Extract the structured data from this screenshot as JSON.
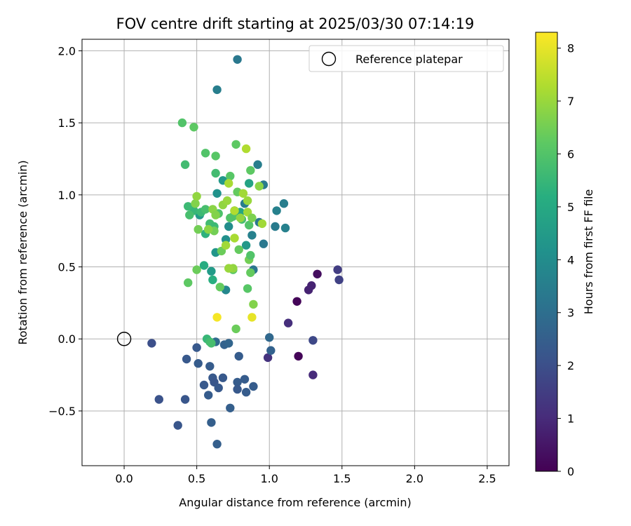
{
  "chart_data": {
    "type": "scatter",
    "title": "FOV centre drift starting at 2025/03/30 07:14:19",
    "xlabel": "Angular distance from reference (arcmin)",
    "ylabel": "Rotation from reference (arcmin)",
    "xlim": [
      -0.29,
      2.65
    ],
    "ylim": [
      -0.88,
      2.08
    ],
    "xticks": [
      0.0,
      0.5,
      1.0,
      1.5,
      2.0,
      2.5
    ],
    "xtick_labels": [
      "0.0",
      "0.5",
      "1.0",
      "1.5",
      "2.0",
      "2.5"
    ],
    "yticks": [
      -0.5,
      0.0,
      0.5,
      1.0,
      1.5,
      2.0
    ],
    "ytick_labels": [
      "−0.5",
      "0.0",
      "0.5",
      "1.0",
      "1.5",
      "2.0"
    ],
    "grid": true,
    "colormap": "viridis",
    "colorbar": {
      "label": "Hours from first FF file",
      "min": 0,
      "max": 8.3,
      "ticks": [
        0,
        1,
        2,
        3,
        4,
        5,
        6,
        7,
        8
      ],
      "tick_labels": [
        "0",
        "1",
        "2",
        "3",
        "4",
        "5",
        "6",
        "7",
        "8"
      ]
    },
    "legend": {
      "location": "top-right",
      "entries": [
        "Reference platepar"
      ]
    },
    "reference_point": {
      "x": 0.0,
      "y": 0.0
    },
    "points": [
      [
        1.19,
        0.26,
        0.1
      ],
      [
        1.2,
        -0.12,
        0.1
      ],
      [
        1.33,
        0.45,
        0.3
      ],
      [
        1.27,
        0.34,
        0.8
      ],
      [
        1.29,
        0.37,
        0.8
      ],
      [
        1.3,
        -0.25,
        1.0
      ],
      [
        1.13,
        0.11,
        1.1
      ],
      [
        0.99,
        -0.13,
        1.2
      ],
      [
        1.47,
        0.48,
        1.5
      ],
      [
        1.48,
        0.41,
        1.6
      ],
      [
        1.3,
        -0.01,
        1.8
      ],
      [
        0.19,
        -0.03,
        2.0
      ],
      [
        0.24,
        -0.42,
        2.1
      ],
      [
        0.37,
        -0.6,
        2.2
      ],
      [
        0.42,
        -0.42,
        2.2
      ],
      [
        0.43,
        -0.14,
        2.3
      ],
      [
        0.5,
        -0.06,
        2.3
      ],
      [
        0.51,
        -0.17,
        2.4
      ],
      [
        0.55,
        -0.32,
        2.3
      ],
      [
        0.58,
        -0.39,
        2.4
      ],
      [
        0.59,
        -0.19,
        2.4
      ],
      [
        0.61,
        -0.27,
        2.3
      ],
      [
        0.62,
        -0.3,
        2.2
      ],
      [
        0.64,
        -0.73,
        2.5
      ],
      [
        0.6,
        -0.58,
        2.5
      ],
      [
        0.65,
        -0.34,
        2.3
      ],
      [
        0.68,
        -0.27,
        2.3
      ],
      [
        0.69,
        -0.04,
        2.6
      ],
      [
        0.72,
        -0.03,
        2.7
      ],
      [
        0.73,
        -0.48,
        2.5
      ],
      [
        0.78,
        -0.3,
        2.4
      ],
      [
        0.79,
        -0.12,
        2.4
      ],
      [
        0.78,
        -0.35,
        2.3
      ],
      [
        0.83,
        -0.28,
        2.4
      ],
      [
        0.84,
        -0.37,
        2.4
      ],
      [
        0.89,
        -0.33,
        2.4
      ],
      [
        1.0,
        0.01,
        2.8
      ],
      [
        1.01,
        -0.08,
        2.6
      ],
      [
        0.63,
        -0.02,
        2.9
      ],
      [
        0.78,
        1.94,
        3.3
      ],
      [
        0.64,
        1.73,
        3.5
      ],
      [
        0.92,
        1.21,
        3.5
      ],
      [
        0.96,
        1.07,
        3.4
      ],
      [
        1.1,
        0.94,
        3.5
      ],
      [
        1.05,
        0.89,
        3.6
      ],
      [
        1.04,
        0.78,
        3.4
      ],
      [
        1.11,
        0.77,
        3.6
      ],
      [
        0.96,
        0.66,
        3.3
      ],
      [
        0.83,
        0.94,
        3.5
      ],
      [
        0.89,
        0.48,
        3.2
      ],
      [
        0.7,
        0.34,
        3.8
      ],
      [
        0.93,
        0.81,
        3.3
      ],
      [
        0.88,
        0.72,
        3.6
      ],
      [
        0.76,
        0.89,
        3.8
      ],
      [
        0.72,
        0.78,
        4.0
      ],
      [
        0.7,
        0.69,
        4.1
      ],
      [
        0.6,
        0.47,
        4.5
      ],
      [
        0.63,
        0.6,
        4.3
      ],
      [
        0.68,
        1.1,
        4.4
      ],
      [
        0.64,
        1.01,
        4.2
      ],
      [
        0.52,
        0.86,
        4.5
      ],
      [
        0.84,
        0.65,
        4.4
      ],
      [
        0.86,
        1.08,
        4.8
      ],
      [
        0.8,
        0.88,
        4.9
      ],
      [
        0.55,
        0.51,
        5.1
      ],
      [
        0.61,
        0.41,
        5.2
      ],
      [
        0.56,
        0.73,
        5.3
      ],
      [
        0.48,
        0.89,
        5.5
      ],
      [
        0.44,
        0.92,
        5.6
      ],
      [
        0.45,
        0.86,
        5.8
      ],
      [
        0.53,
        0.88,
        5.6
      ],
      [
        0.59,
        0.8,
        5.7
      ],
      [
        0.56,
        0.9,
        5.8
      ],
      [
        0.62,
        0.78,
        5.6
      ],
      [
        0.65,
        0.87,
        5.9
      ],
      [
        0.73,
        0.84,
        6.0
      ],
      [
        0.75,
        0.85,
        6.0
      ],
      [
        0.81,
        0.83,
        5.8
      ],
      [
        0.86,
        0.79,
        6.0
      ],
      [
        0.57,
        0.0,
        5.5
      ],
      [
        0.59,
        -0.02,
        5.7
      ],
      [
        0.6,
        -0.03,
        5.8
      ],
      [
        0.4,
        1.5,
        6.0
      ],
      [
        0.42,
        1.21,
        5.7
      ],
      [
        0.48,
        1.47,
        6.2
      ],
      [
        0.56,
        1.29,
        6.0
      ],
      [
        0.63,
        1.15,
        5.7
      ],
      [
        0.63,
        1.27,
        6.1
      ],
      [
        0.77,
        1.35,
        6.2
      ],
      [
        0.73,
        1.13,
        6.1
      ],
      [
        0.87,
        1.17,
        6.2
      ],
      [
        0.78,
        1.02,
        6.3
      ],
      [
        0.66,
        0.36,
        6.3
      ],
      [
        0.67,
        0.61,
        6.4
      ],
      [
        0.62,
        0.75,
        6.5
      ],
      [
        0.79,
        0.62,
        6.3
      ],
      [
        0.86,
        0.55,
        6.5
      ],
      [
        0.85,
        0.35,
        6.1
      ],
      [
        0.75,
        0.48,
        6.1
      ],
      [
        0.87,
        0.46,
        6.3
      ],
      [
        0.87,
        0.58,
        6.0
      ],
      [
        0.89,
        0.24,
        6.7
      ],
      [
        0.77,
        0.07,
        6.4
      ],
      [
        0.44,
        0.39,
        6.2
      ],
      [
        0.5,
        0.48,
        6.4
      ],
      [
        0.51,
        0.76,
        6.5
      ],
      [
        0.49,
        0.94,
        6.7
      ],
      [
        0.5,
        0.99,
        6.9
      ],
      [
        0.58,
        0.76,
        6.8
      ],
      [
        0.61,
        0.9,
        6.8
      ],
      [
        0.63,
        0.86,
        6.7
      ],
      [
        0.68,
        0.93,
        6.9
      ],
      [
        0.71,
        0.96,
        7.0
      ],
      [
        0.72,
        1.08,
        7.2
      ],
      [
        0.76,
        0.7,
        7.2
      ],
      [
        0.76,
        0.89,
        7.3
      ],
      [
        0.82,
        1.01,
        7.1
      ],
      [
        0.84,
        1.32,
        7.3
      ],
      [
        0.85,
        0.96,
        7.0
      ],
      [
        0.85,
        0.88,
        7.1
      ],
      [
        0.8,
        0.84,
        6.9
      ],
      [
        0.88,
        0.84,
        6.6
      ],
      [
        0.93,
        1.06,
        6.8
      ],
      [
        0.95,
        0.8,
        7.1
      ],
      [
        0.75,
        0.49,
        6.9
      ],
      [
        0.72,
        0.49,
        7.0
      ],
      [
        0.7,
        0.65,
        7.1
      ],
      [
        0.88,
        0.15,
        8.0
      ],
      [
        0.64,
        0.15,
        8.2
      ]
    ]
  }
}
